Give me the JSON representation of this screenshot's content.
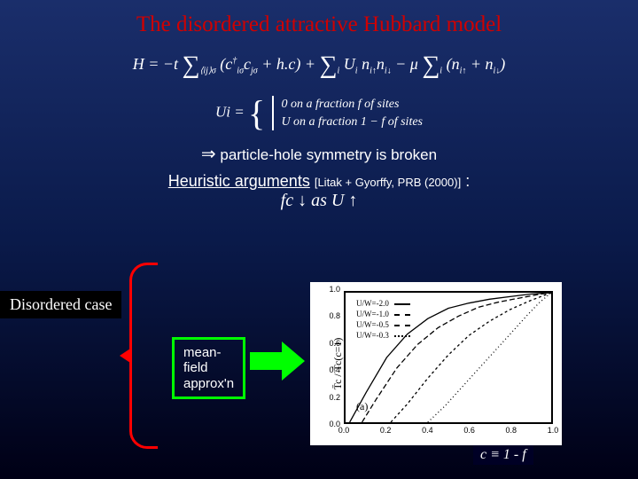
{
  "title_text": "The disordered attractive Hubbard model",
  "title_color": "#d00000",
  "hamiltonian_html": "H = −t ∑⟨ij⟩σ (c†iσ cjσ + h.c) + ∑i Ui ni↑ ni↓ − μ ∑i (ni↑ + ni↓)",
  "ui_label": "Ui =",
  "ui_case1": "0   on a fraction f of sites",
  "ui_case2": "U   on a fraction 1 − f of sites",
  "phs_arrow": "⇒",
  "phs_text": "particle-hole symmetry is broken",
  "heur_text": "Heuristic arguments",
  "heur_cite": "[Litak + Gyorffy, PRB (2000)]",
  "heur_colon": " :",
  "fc_line": "fc ↓ as U ↑",
  "disordered_label": "Disordered case",
  "mf_l1": "mean-",
  "mf_l2": "field",
  "mf_l3": "approx'n",
  "panel_a": "(a)",
  "ylabel": "T̄c / T̄c(c=1)",
  "c_label": "c ≡ 1 - f",
  "chart": {
    "type": "line",
    "xlim": [
      0,
      1
    ],
    "ylim": [
      0,
      1
    ],
    "xticks": [
      0.0,
      0.2,
      0.4,
      0.6,
      0.8,
      1.0
    ],
    "yticks": [
      0.0,
      0.2,
      0.4,
      0.6,
      0.8,
      1.0
    ],
    "background_color": "#ffffff",
    "axis_color": "#000000",
    "legend_pos": "top-left",
    "series": [
      {
        "label": "U/W=-2.0",
        "dash": "solid",
        "color": "#000000",
        "x": [
          0.02,
          0.1,
          0.2,
          0.3,
          0.4,
          0.5,
          0.6,
          0.7,
          0.8,
          0.9,
          1.0
        ],
        "y": [
          0.0,
          0.23,
          0.5,
          0.68,
          0.8,
          0.88,
          0.92,
          0.95,
          0.97,
          0.99,
          1.0
        ]
      },
      {
        "label": "U/W=-1.0",
        "dash": "long",
        "color": "#000000",
        "x": [
          0.08,
          0.15,
          0.25,
          0.35,
          0.45,
          0.55,
          0.65,
          0.75,
          0.85,
          0.95,
          1.0
        ],
        "y": [
          0.0,
          0.18,
          0.42,
          0.6,
          0.73,
          0.82,
          0.89,
          0.93,
          0.96,
          0.99,
          1.0
        ]
      },
      {
        "label": "U/W=-0.5",
        "dash": "short",
        "color": "#000000",
        "x": [
          0.22,
          0.3,
          0.4,
          0.5,
          0.6,
          0.7,
          0.8,
          0.9,
          1.0
        ],
        "y": [
          0.0,
          0.14,
          0.34,
          0.52,
          0.67,
          0.78,
          0.87,
          0.94,
          1.0
        ]
      },
      {
        "label": "U/W=-0.3",
        "dash": "dot",
        "color": "#000000",
        "x": [
          0.4,
          0.48,
          0.56,
          0.64,
          0.72,
          0.8,
          0.88,
          0.94,
          1.0
        ],
        "y": [
          0.0,
          0.12,
          0.26,
          0.4,
          0.54,
          0.68,
          0.82,
          0.92,
          1.0
        ]
      }
    ]
  }
}
